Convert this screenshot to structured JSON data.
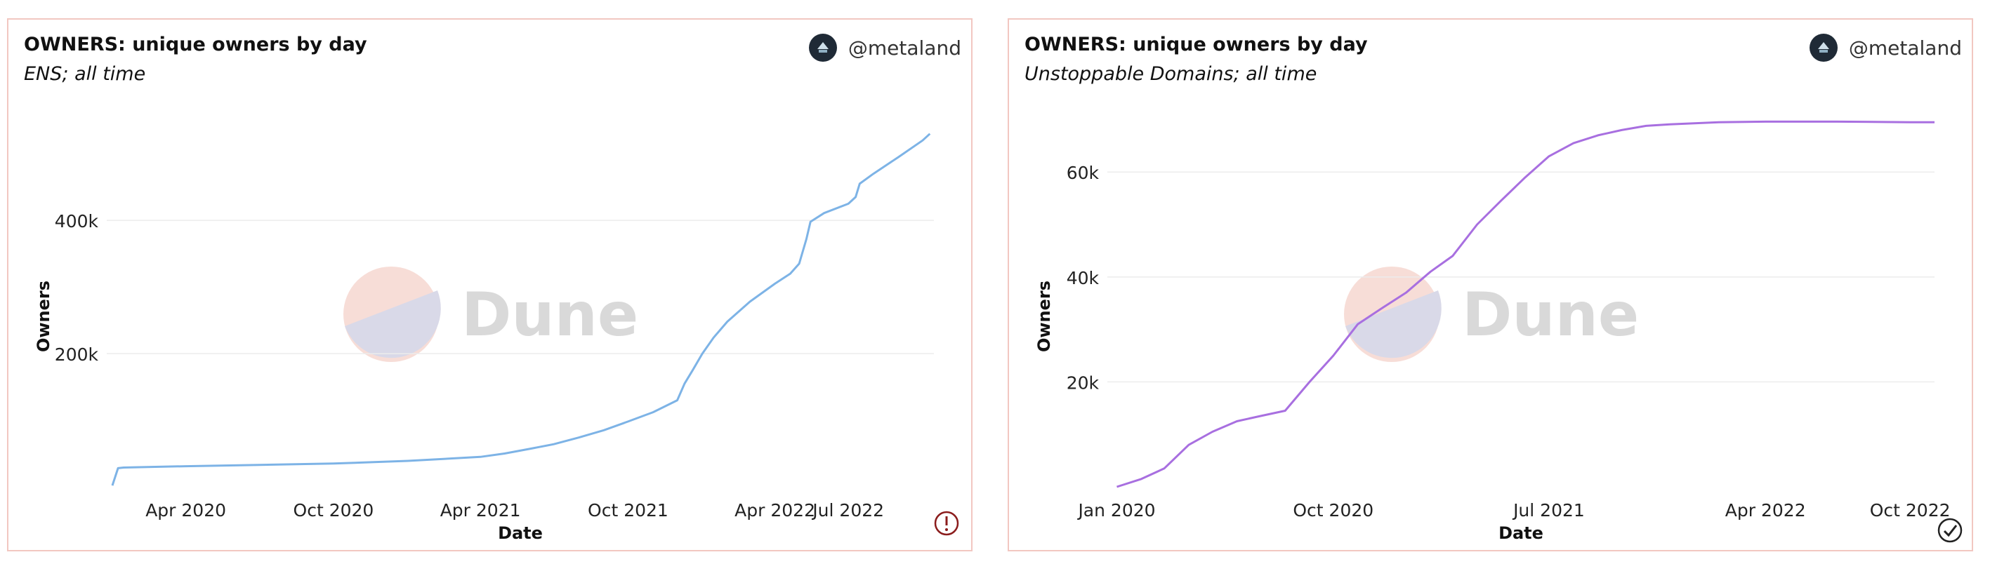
{
  "author": {
    "handle": "@metaland",
    "avatar_icon": "metaland-avatar-icon"
  },
  "watermark": {
    "text": "Dune"
  },
  "colors": {
    "ens_line": "#7db3e6",
    "ud_line": "#a86fe0",
    "panel_border": "#f2c7c1",
    "warning": "#8b1c1c",
    "ok": "#222222"
  },
  "chart_data": [
    {
      "type": "line",
      "title": "OWNERS: unique owners by day",
      "subtitle": "ENS; all time",
      "xlabel": "Date",
      "ylabel": "Owners",
      "x_ticks": [
        "Apr 2020",
        "Oct 2020",
        "Apr 2021",
        "Oct 2021",
        "Apr 2022",
        "Jul 2022"
      ],
      "y_ticks": [
        200000,
        400000
      ],
      "y_tick_labels": [
        "200k",
        "400k"
      ],
      "ylim": [
        0,
        575000
      ],
      "grid": "horizontal",
      "status_icon": "warning-icon",
      "series": [
        {
          "x": [
            "2020-01-01",
            "2020-01-08",
            "2020-01-15",
            "2020-04-01",
            "2020-07-01",
            "2020-10-01",
            "2021-01-01",
            "2021-04-01",
            "2021-05-01",
            "2021-06-01",
            "2021-07-01",
            "2021-08-01",
            "2021-09-01",
            "2021-10-01",
            "2021-11-01",
            "2021-12-01",
            "2021-12-10",
            "2021-12-20",
            "2022-01-01",
            "2022-01-15",
            "2022-02-01",
            "2022-03-01",
            "2022-04-01",
            "2022-04-20",
            "2022-05-01",
            "2022-05-10",
            "2022-05-15",
            "2022-06-01",
            "2022-07-01",
            "2022-07-10",
            "2022-07-15",
            "2022-08-01",
            "2022-09-01",
            "2022-10-01",
            "2022-10-10"
          ],
          "y": [
            2000,
            28000,
            29000,
            31000,
            33000,
            35000,
            39000,
            45000,
            50000,
            57000,
            64000,
            74000,
            85000,
            98000,
            112000,
            130000,
            155000,
            175000,
            200000,
            224000,
            248000,
            278000,
            305000,
            320000,
            335000,
            372000,
            398000,
            411000,
            425000,
            435000,
            455000,
            470000,
            495000,
            520000,
            530000
          ]
        }
      ]
    },
    {
      "type": "line",
      "title": "OWNERS: unique owners by day",
      "subtitle": "Unstoppable Domains; all time",
      "xlabel": "Date",
      "ylabel": "Owners",
      "x_ticks": [
        "Jan 2020",
        "Oct 2020",
        "Jul 2021",
        "Apr 2022",
        "Oct 2022"
      ],
      "y_ticks": [
        20000,
        40000,
        60000
      ],
      "y_tick_labels": [
        "20k",
        "40k",
        "60k"
      ],
      "ylim": [
        0,
        73000
      ],
      "grid": "horizontal",
      "status_icon": "check-icon",
      "series": [
        {
          "x": [
            "2020-01-01",
            "2020-02-01",
            "2020-03-01",
            "2020-04-01",
            "2020-05-01",
            "2020-06-01",
            "2020-07-01",
            "2020-08-01",
            "2020-09-01",
            "2020-10-01",
            "2020-11-01",
            "2020-12-01",
            "2021-01-01",
            "2021-02-01",
            "2021-03-01",
            "2021-04-01",
            "2021-05-01",
            "2021-06-01",
            "2021-07-01",
            "2021-08-01",
            "2021-09-01",
            "2021-10-01",
            "2021-11-01",
            "2021-12-01",
            "2022-01-01",
            "2022-02-01",
            "2022-04-01",
            "2022-07-01",
            "2022-10-01",
            "2022-11-01"
          ],
          "y": [
            0,
            1500,
            3500,
            8000,
            10500,
            12500,
            13500,
            14500,
            20000,
            25000,
            31000,
            34000,
            37000,
            41000,
            44000,
            50000,
            54500,
            59000,
            63000,
            65500,
            67000,
            68000,
            68800,
            69100,
            69300,
            69500,
            69600,
            69600,
            69500,
            69500
          ]
        }
      ]
    }
  ]
}
